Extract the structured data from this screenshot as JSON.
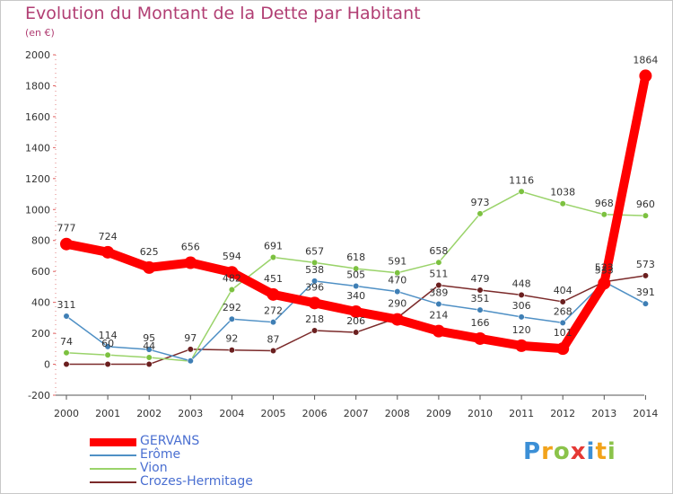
{
  "title": "Evolution du Montant de la Dette par Habitant",
  "subtitle": "(en €)",
  "logo": {
    "text": "Proxiti",
    "colors": [
      "#3b8fd6",
      "#f2a31b",
      "#8bc34a",
      "#e53935",
      "#3b8fd6",
      "#f2a31b",
      "#8bc34a"
    ]
  },
  "chart_data": {
    "type": "line",
    "title": "Evolution du Montant de la Dette par Habitant",
    "subtitle": "(en €)",
    "xlabel": "",
    "ylabel": "",
    "x": [
      "2000",
      "2001",
      "2002",
      "2003",
      "2004",
      "2005",
      "2006",
      "2007",
      "2008",
      "2009",
      "2010",
      "2011",
      "2012",
      "2013",
      "2014"
    ],
    "ylim": [
      -200,
      2000
    ],
    "yticks": [
      "-200",
      "0",
      "200",
      "400",
      "600",
      "800",
      "1000",
      "1200",
      "1400",
      "1600",
      "1800",
      "2000"
    ],
    "grid": false,
    "legend_position": "bottom-left",
    "series": [
      {
        "name": "GERVANS",
        "color": "#ff0000",
        "point_color": "#ff0000",
        "values": [
          777,
          724,
          625,
          656,
          594,
          451,
          396,
          340,
          290,
          214,
          166,
          120,
          101,
          523,
          1864
        ],
        "labels": [
          "777",
          "724",
          "625",
          "656",
          "594",
          "451",
          "396",
          "340",
          "290",
          "214",
          "166",
          "120",
          "101",
          "523",
          "1864"
        ]
      },
      {
        "name": "Erôme",
        "color": "#4f90c5",
        "point_color": "#3f7fb5",
        "values": [
          311,
          114,
          95,
          22,
          292,
          272,
          538,
          505,
          470,
          389,
          351,
          306,
          268,
          533,
          391
        ],
        "labels": [
          "311",
          "114",
          "95",
          "",
          "292",
          "272",
          "538",
          "505",
          "470",
          "389",
          "351",
          "306",
          "268",
          "533",
          "391"
        ]
      },
      {
        "name": "Vion",
        "color": "#9ad36a",
        "point_color": "#7cc140",
        "values": [
          74,
          60,
          44,
          20,
          482,
          691,
          657,
          618,
          591,
          658,
          973,
          1116,
          1038,
          968,
          960
        ],
        "labels": [
          "74",
          "60",
          "44",
          "",
          "482",
          "691",
          "657",
          "618",
          "591",
          "658",
          "973",
          "1116",
          "1038",
          "968",
          "960"
        ]
      },
      {
        "name": "Crozes-Hermitage",
        "color": "#7b2a2a",
        "point_color": "#6b1f1f",
        "values": [
          0,
          0,
          0,
          97,
          92,
          87,
          218,
          206,
          300,
          511,
          479,
          448,
          404,
          533,
          573
        ],
        "labels": [
          "",
          "",
          "",
          "97",
          "92",
          "87",
          "218",
          "206",
          "",
          "511",
          "479",
          "448",
          "404",
          "",
          "573"
        ]
      }
    ]
  }
}
